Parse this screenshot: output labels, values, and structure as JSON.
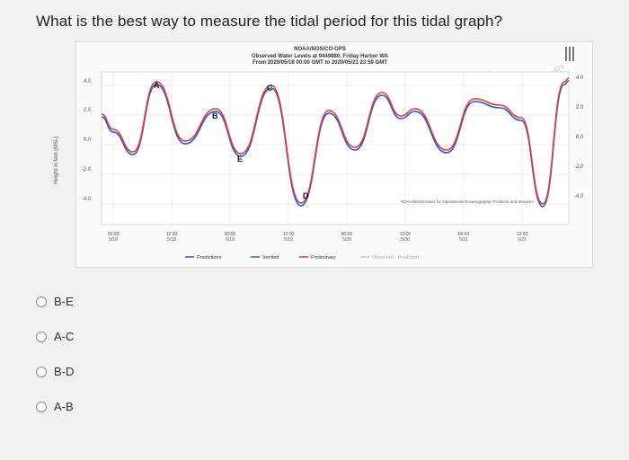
{
  "question": "What is the best way to measure the tidal period for this tidal graph?",
  "chart": {
    "header": [
      "NOAA/NOS/CO-OPS",
      "Observed Water Levels at 9449880, Friday Harbor WA",
      "From 2020/05/18 00:00 GMT to 2020/05/21 23:59 GMT"
    ],
    "ylabel": "Height in feet (MSL)",
    "yticks_left": [
      "4.0",
      "2.0",
      "0.0",
      "-2.0",
      "-4.0"
    ],
    "yticks_right": [
      "4.0",
      "2.0",
      "0.0",
      "-2.0",
      "-4.0"
    ],
    "xticks": [
      {
        "time": "00:00",
        "date": "5/18"
      },
      {
        "time": "12:00",
        "date": "5/18"
      },
      {
        "time": "00:00",
        "date": "5/19"
      },
      {
        "time": "12:00",
        "date": "5/19"
      },
      {
        "time": "00:00",
        "date": "5/20"
      },
      {
        "time": "12:00",
        "date": "5/20"
      },
      {
        "time": "00:00",
        "date": "5/21"
      },
      {
        "time": "12:00",
        "date": "5/21"
      }
    ],
    "point_labels": [
      "A",
      "B",
      "C",
      "D",
      "E"
    ],
    "watermark": "PRELIMINARY",
    "noaa_note": "NOAA/NOS/Center for Operational Oceanographic Products and Services",
    "legend": [
      {
        "label": "Predictions",
        "color": "#2b57d9"
      },
      {
        "label": "Verified",
        "color": "#2a8a2a"
      },
      {
        "label": "Preliminary",
        "color": "#e23a3a"
      },
      {
        "label": "Observed - Predicted",
        "color": "#c8c8c8"
      }
    ],
    "colors": {
      "predictions": "#2b57d9",
      "preliminary": "#e23a3a"
    }
  },
  "options": [
    {
      "label": "B-E"
    },
    {
      "label": "A-C"
    },
    {
      "label": "B-D"
    },
    {
      "label": "A-B"
    }
  ]
}
